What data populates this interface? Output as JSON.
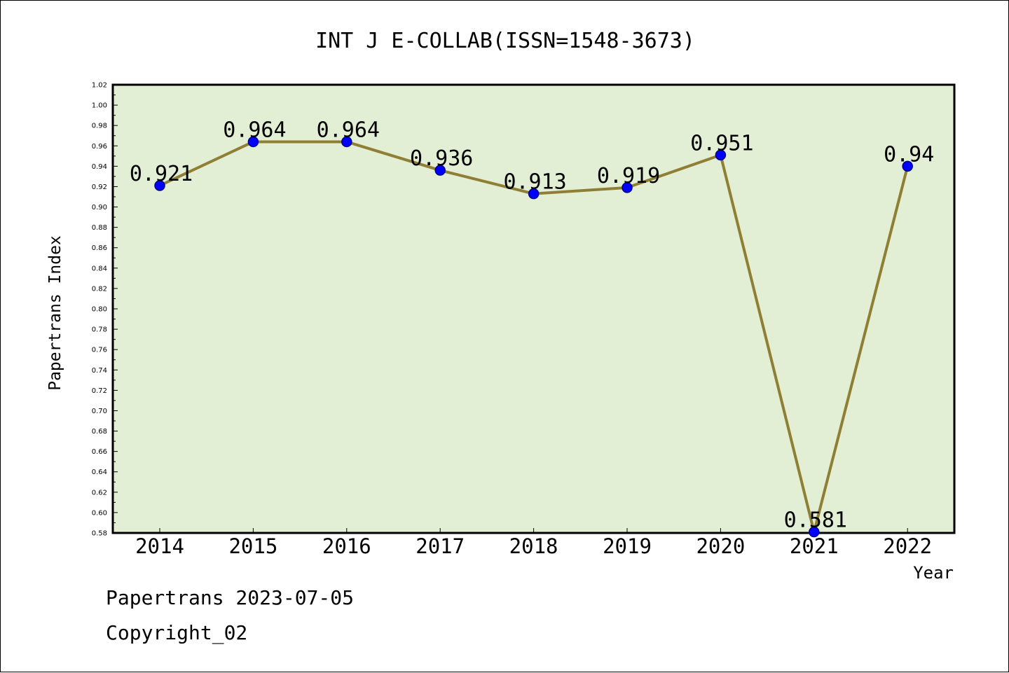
{
  "chart_data": {
    "type": "line",
    "title": "INT J E-COLLAB(ISSN=1548-3673)",
    "xlabel": "Year",
    "ylabel": "Papertrans Index",
    "x": [
      "2014",
      "2015",
      "2016",
      "2017",
      "2018",
      "2019",
      "2020",
      "2021",
      "2022"
    ],
    "series": [
      {
        "values": [
          0.921,
          0.964,
          0.964,
          0.936,
          0.913,
          0.919,
          0.951,
          0.581,
          0.94
        ],
        "labels": [
          "0.921",
          "0.964",
          "0.964",
          "0.936",
          "0.913",
          "0.919",
          "0.951",
          "0.581",
          "0.94"
        ]
      }
    ],
    "ylim": [
      0.58,
      1.02
    ],
    "yticks": [
      "0.58",
      "0.60",
      "0.62",
      "0.64",
      "0.66",
      "0.68",
      "0.70",
      "0.72",
      "0.74",
      "0.76",
      "0.78",
      "0.80",
      "0.82",
      "0.84",
      "0.86",
      "0.88",
      "0.90",
      "0.92",
      "0.94",
      "0.96",
      "0.98",
      "1.00",
      "1.02"
    ],
    "grid": false,
    "colors": {
      "plot_background": "#e2efd5",
      "line": "#8e7f35",
      "marker": "#0000ff",
      "marker_edge": "#00008b"
    }
  },
  "footer": {
    "line1": "Papertrans 2023-07-05",
    "line2": "Copyright_02"
  }
}
